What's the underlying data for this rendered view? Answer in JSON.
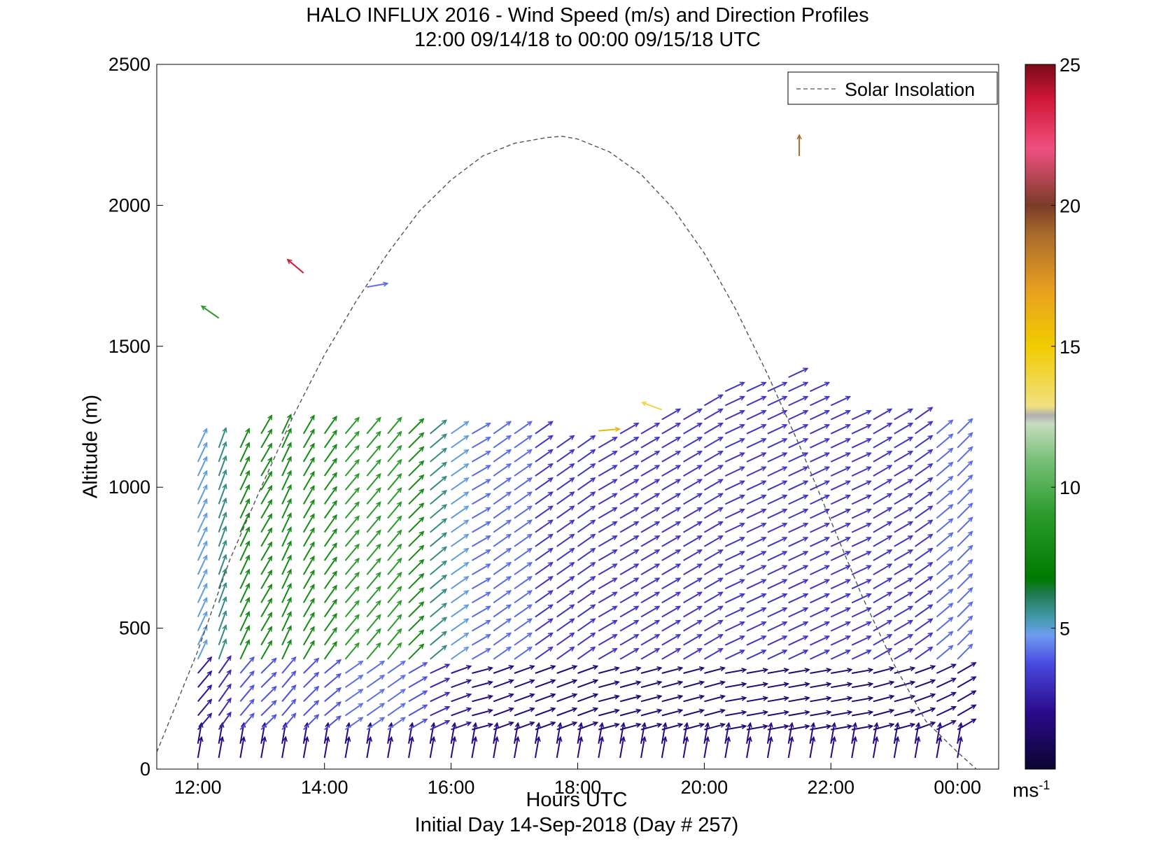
{
  "chart_data": {
    "type": "quiver",
    "title": "HALO INFLUX 2016 - Wind Speed (m/s) and Direction Profiles",
    "subtitle": "12:00 09/14/18 to 00:00 09/15/18  UTC",
    "xlabel": "Hours UTC",
    "footer": "Initial Day 14-Sep-2018 (Day # 257)",
    "ylabel": "Altitude (m)",
    "xlim": [
      11.35,
      24.65
    ],
    "ylim": [
      0,
      2500
    ],
    "x_ticks": [
      12,
      14,
      16,
      18,
      20,
      22,
      24
    ],
    "x_tick_labels": [
      "12:00",
      "14:00",
      "16:00",
      "18:00",
      "20:00",
      "22:00",
      "00:00"
    ],
    "y_ticks": [
      0,
      500,
      1000,
      1500,
      2000,
      2500
    ],
    "y_tick_labels": [
      "0",
      "500",
      "1000",
      "1500",
      "2000",
      "2500"
    ],
    "legend": {
      "label": "Solar Insolation",
      "position": "top-right"
    },
    "solar_insolation": {
      "style": "dashed",
      "color": "#555555",
      "x": [
        11.35,
        12.0,
        12.5,
        13.0,
        13.5,
        14.0,
        14.5,
        15.0,
        15.5,
        16.0,
        16.5,
        17.0,
        17.5,
        17.75,
        18.0,
        18.5,
        19.0,
        19.5,
        20.0,
        20.5,
        21.0,
        21.5,
        22.0,
        22.5,
        23.0,
        23.5,
        24.0,
        24.3
      ],
      "y": [
        60,
        420,
        740,
        1000,
        1250,
        1470,
        1660,
        1830,
        1980,
        2090,
        2175,
        2220,
        2240,
        2245,
        2235,
        2190,
        2110,
        1990,
        1830,
        1630,
        1400,
        1150,
        880,
        610,
        370,
        170,
        60,
        0
      ]
    },
    "colorbar": {
      "min": 0,
      "max": 25,
      "ticks": [
        5,
        10,
        15,
        20,
        25
      ],
      "tick_labels": [
        "5",
        "10",
        "15",
        "20",
        "25"
      ],
      "unit": "ms",
      "unit_exp": "-1"
    },
    "profiles": [
      {
        "t": 12.0,
        "top": 1150,
        "dir": 25,
        "spd": 5
      },
      {
        "t": 12.33,
        "top": 1150,
        "dir": 20,
        "spd": 6
      },
      {
        "t": 12.67,
        "top": 1150,
        "dir": 25,
        "spd": 8
      },
      {
        "t": 13.0,
        "top": 1200,
        "dir": 30,
        "spd": 8
      },
      {
        "t": 13.33,
        "top": 1200,
        "dir": 25,
        "spd": 8
      },
      {
        "t": 13.67,
        "top": 1200,
        "dir": 30,
        "spd": 8
      },
      {
        "t": 14.0,
        "top": 1200,
        "dir": 35,
        "spd": 8
      },
      {
        "t": 14.33,
        "top": 1200,
        "dir": 40,
        "spd": 9
      },
      {
        "t": 14.67,
        "top": 1220,
        "dir": 40,
        "spd": 9
      },
      {
        "t": 15.0,
        "top": 1200,
        "dir": 40,
        "spd": 9
      },
      {
        "t": 15.33,
        "top": 1200,
        "dir": 45,
        "spd": 8
      },
      {
        "t": 15.67,
        "top": 1200,
        "dir": 50,
        "spd": 6
      },
      {
        "t": 16.0,
        "top": 1200,
        "dir": 55,
        "spd": 5
      },
      {
        "t": 16.33,
        "top": 1200,
        "dir": 60,
        "spd": 4
      },
      {
        "t": 16.67,
        "top": 1200,
        "dir": 55,
        "spd": 4
      },
      {
        "t": 17.0,
        "top": 1200,
        "dir": 55,
        "spd": 4
      },
      {
        "t": 17.33,
        "top": 1200,
        "dir": 55,
        "spd": 3
      },
      {
        "t": 17.67,
        "top": 1160,
        "dir": 55,
        "spd": 3
      },
      {
        "t": 18.0,
        "top": 1150,
        "dir": 55,
        "spd": 3
      },
      {
        "t": 18.33,
        "top": 1160,
        "dir": 60,
        "spd": 3
      },
      {
        "t": 18.67,
        "top": 1200,
        "dir": 60,
        "spd": 3
      },
      {
        "t": 19.0,
        "top": 1220,
        "dir": 60,
        "spd": 3
      },
      {
        "t": 19.33,
        "top": 1250,
        "dir": 60,
        "spd": 3
      },
      {
        "t": 19.67,
        "top": 1280,
        "dir": 60,
        "spd": 3
      },
      {
        "t": 20.0,
        "top": 1330,
        "dir": 60,
        "spd": 3
      },
      {
        "t": 20.33,
        "top": 1350,
        "dir": 65,
        "spd": 3
      },
      {
        "t": 20.67,
        "top": 1370,
        "dir": 65,
        "spd": 3
      },
      {
        "t": 21.0,
        "top": 1380,
        "dir": 65,
        "spd": 3
      },
      {
        "t": 21.33,
        "top": 1390,
        "dir": 65,
        "spd": 3
      },
      {
        "t": 21.67,
        "top": 1350,
        "dir": 65,
        "spd": 3
      },
      {
        "t": 22.0,
        "top": 1300,
        "dir": 65,
        "spd": 3
      },
      {
        "t": 22.33,
        "top": 1280,
        "dir": 65,
        "spd": 3
      },
      {
        "t": 22.67,
        "top": 1260,
        "dir": 60,
        "spd": 3
      },
      {
        "t": 23.0,
        "top": 1250,
        "dir": 60,
        "spd": 3
      },
      {
        "t": 23.33,
        "top": 1240,
        "dir": 55,
        "spd": 3
      },
      {
        "t": 23.67,
        "top": 1230,
        "dir": 50,
        "spd": 4
      },
      {
        "t": 24.0,
        "top": 1220,
        "dir": 45,
        "spd": 4
      }
    ],
    "isolated_vectors": [
      {
        "t": 12.33,
        "alt": 1600,
        "dir": 305,
        "spd": 9
      },
      {
        "t": 13.67,
        "alt": 1760,
        "dir": 310,
        "spd": 24
      },
      {
        "t": 14.67,
        "alt": 1710,
        "dir": 80,
        "spd": 4
      },
      {
        "t": 18.33,
        "alt": 1200,
        "dir": 85,
        "spd": 16
      },
      {
        "t": 19.33,
        "alt": 1275,
        "dir": 290,
        "spd": 14
      },
      {
        "t": 21.5,
        "alt": 2175,
        "dir": 0,
        "spd": 19
      }
    ]
  }
}
